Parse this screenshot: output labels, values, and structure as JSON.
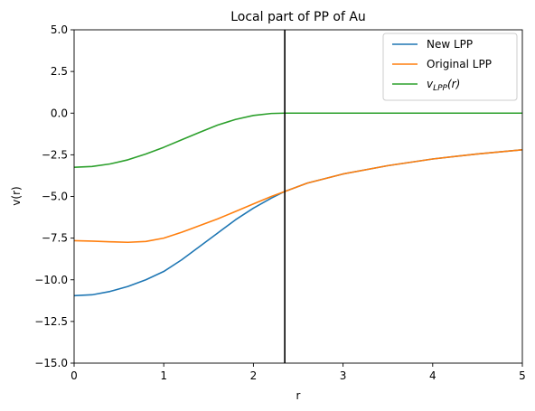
{
  "chart_data": {
    "type": "line",
    "title": "Local part of PP of Au",
    "xlabel": "r",
    "ylabel": "v(r)",
    "xlim": [
      0,
      5
    ],
    "ylim": [
      -15,
      5
    ],
    "xticks": [
      0,
      1,
      2,
      3,
      4,
      5
    ],
    "xtick_labels": [
      "0",
      "1",
      "2",
      "3",
      "4",
      "5"
    ],
    "yticks": [
      -15,
      -12.5,
      -10,
      -7.5,
      -5,
      -2.5,
      0,
      2.5,
      5
    ],
    "ytick_labels": [
      "−15.0",
      "−12.5",
      "−10.0",
      "−7.5",
      "−5.0",
      "−2.5",
      "0.0",
      "2.5",
      "5.0"
    ],
    "grid": false,
    "legend_position": "top-right",
    "vline": {
      "x": 2.35,
      "color": "#000000"
    },
    "series": [
      {
        "name": "New LPP",
        "color": "#1f77b4",
        "x": [
          0,
          0.2,
          0.4,
          0.6,
          0.8,
          1.0,
          1.2,
          1.4,
          1.6,
          1.8,
          2.0,
          2.2,
          2.35,
          2.6,
          3.0,
          3.5,
          4.0,
          4.5,
          5.0
        ],
        "y": [
          -10.95,
          -10.9,
          -10.7,
          -10.4,
          -10.0,
          -9.5,
          -8.8,
          -8.0,
          -7.2,
          -6.4,
          -5.7,
          -5.1,
          -4.7,
          -4.2,
          -3.65,
          -3.15,
          -2.75,
          -2.45,
          -2.2
        ]
      },
      {
        "name": "Original LPP",
        "color": "#ff7f0e",
        "x": [
          0,
          0.2,
          0.4,
          0.6,
          0.8,
          1.0,
          1.2,
          1.4,
          1.6,
          1.8,
          2.0,
          2.2,
          2.35,
          2.6,
          3.0,
          3.5,
          4.0,
          4.5,
          5.0
        ],
        "y": [
          -7.65,
          -7.68,
          -7.72,
          -7.75,
          -7.7,
          -7.5,
          -7.15,
          -6.75,
          -6.35,
          -5.9,
          -5.45,
          -5.0,
          -4.7,
          -4.2,
          -3.65,
          -3.15,
          -2.75,
          -2.45,
          -2.2
        ]
      },
      {
        "name": "v_LPP(r)",
        "legend_base": "v",
        "legend_sub": "LPP",
        "legend_suffix": "(r)",
        "color": "#2ca02c",
        "x": [
          0,
          0.2,
          0.4,
          0.6,
          0.8,
          1.0,
          1.2,
          1.4,
          1.6,
          1.8,
          2.0,
          2.2,
          2.35,
          2.6,
          3.0,
          3.5,
          4.0,
          4.5,
          5.0
        ],
        "y": [
          -3.25,
          -3.2,
          -3.05,
          -2.8,
          -2.45,
          -2.05,
          -1.6,
          -1.15,
          -0.72,
          -0.38,
          -0.14,
          -0.02,
          0.0,
          0.0,
          0.0,
          0.0,
          0.0,
          0.0,
          0.0
        ]
      }
    ]
  }
}
